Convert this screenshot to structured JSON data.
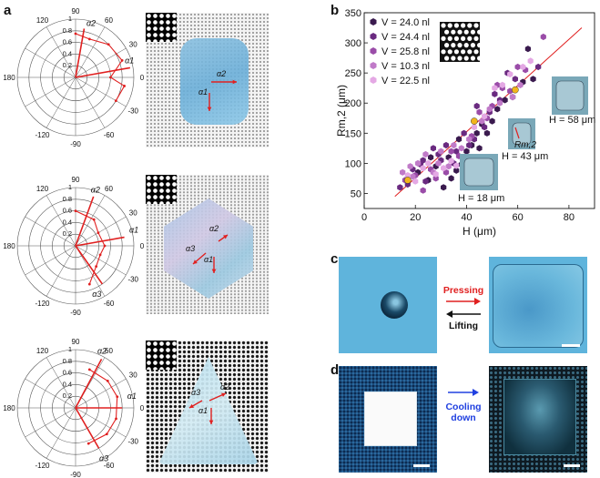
{
  "panels": {
    "a": "a",
    "b": "b",
    "c": "c",
    "d": "d"
  },
  "polar": {
    "radial_ticks": [
      "1",
      "0.8",
      "0.6",
      "0.4",
      "0.2"
    ],
    "angle_labels": {
      "top": "90",
      "top_right": "60",
      "right_upper": "30",
      "right": "0",
      "right_lower": "-30",
      "bottom_right": "-60",
      "bottom": "-90",
      "bottom_left": "-120",
      "left": "180",
      "top_left": "120"
    },
    "alpha_labels": [
      "α1",
      "α2",
      "α3"
    ],
    "series_color": "#e02020"
  },
  "chart_data": {
    "type": "scatter",
    "xlabel": "H (μm)",
    "ylabel": "Rm,2 (μm)",
    "xlim": [
      0,
      90
    ],
    "ylim": [
      25,
      350
    ],
    "xticks": [
      0,
      20,
      40,
      60,
      80
    ],
    "yticks": [
      50,
      100,
      150,
      200,
      250,
      300,
      350
    ],
    "legend_position": "top-left",
    "series": [
      {
        "name": "V = 24.0 nl",
        "color": "#3a1a4e",
        "points": [
          [
            21,
            85
          ],
          [
            25,
            72
          ],
          [
            28,
            95
          ],
          [
            31,
            60
          ],
          [
            33,
            110
          ],
          [
            36,
            88
          ],
          [
            38,
            98
          ],
          [
            40,
            120
          ],
          [
            42,
            130
          ],
          [
            44,
            150
          ],
          [
            46,
            165
          ],
          [
            48,
            150
          ],
          [
            52,
            190
          ],
          [
            55,
            205
          ],
          [
            58,
            210
          ],
          [
            62,
            235
          ],
          [
            64,
            290
          ],
          [
            66,
            240
          ],
          [
            26,
            110
          ],
          [
            34,
            75
          ],
          [
            37,
            140
          ],
          [
            45,
            125
          ],
          [
            50,
            170
          ]
        ]
      },
      {
        "name": "V = 24.4 nl",
        "color": "#6a2a80",
        "points": [
          [
            14,
            60
          ],
          [
            17,
            65
          ],
          [
            19,
            90
          ],
          [
            22,
            98
          ],
          [
            24,
            70
          ],
          [
            27,
            125
          ],
          [
            29,
            115
          ],
          [
            30,
            105
          ],
          [
            32,
            130
          ],
          [
            35,
            100
          ],
          [
            39,
            150
          ],
          [
            41,
            130
          ],
          [
            43,
            140
          ],
          [
            47,
            160
          ],
          [
            49,
            185
          ],
          [
            51,
            215
          ],
          [
            53,
            205
          ],
          [
            56,
            250
          ],
          [
            59,
            240
          ],
          [
            68,
            260
          ],
          [
            23,
            105
          ],
          [
            36,
            120
          ],
          [
            44,
            195
          ]
        ]
      },
      {
        "name": "V = 25.8 nl",
        "color": "#9a4ca8",
        "points": [
          [
            16,
            72
          ],
          [
            20,
            80
          ],
          [
            23,
            55
          ],
          [
            26,
            90
          ],
          [
            28,
            75
          ],
          [
            32,
            85
          ],
          [
            34,
            120
          ],
          [
            37,
            112
          ],
          [
            40,
            95
          ],
          [
            42,
            145
          ],
          [
            45,
            185
          ],
          [
            48,
            175
          ],
          [
            50,
            195
          ],
          [
            54,
            225
          ],
          [
            57,
            220
          ],
          [
            60,
            260
          ],
          [
            63,
            255
          ],
          [
            70,
            310
          ],
          [
            52,
            230
          ]
        ]
      },
      {
        "name": "V = 10.3 nl",
        "color": "#c07ac8",
        "points": [
          [
            15,
            85
          ],
          [
            18,
            95
          ],
          [
            21,
            100
          ],
          [
            24,
            115
          ],
          [
            27,
            85
          ],
          [
            30,
            120
          ],
          [
            33,
            95
          ],
          [
            35,
            130
          ],
          [
            38,
            125
          ],
          [
            41,
            140
          ],
          [
            46,
            170
          ],
          [
            49,
            190
          ],
          [
            53,
            200
          ],
          [
            58,
            210
          ],
          [
            61,
            230
          ],
          [
            19,
            78
          ],
          [
            29,
            100
          ]
        ]
      },
      {
        "name": "V = 22.5 nl",
        "color": "#e4a8e4",
        "points": [
          [
            17,
            80
          ],
          [
            20,
            70
          ],
          [
            23,
            92
          ],
          [
            25,
            100
          ],
          [
            31,
            92
          ],
          [
            34,
            104
          ],
          [
            39,
            108
          ],
          [
            43,
            160
          ],
          [
            47,
            178
          ],
          [
            51,
            225
          ],
          [
            54,
            230
          ],
          [
            57,
            248
          ],
          [
            62,
            260
          ],
          [
            65,
            270
          ],
          [
            28,
            82
          ],
          [
            36,
            96
          ]
        ]
      }
    ],
    "highlight_points": [
      [
        17,
        72
      ],
      [
        43,
        170
      ],
      [
        59,
        222
      ]
    ],
    "highlight_color": "#f2b51c",
    "fit_line": [
      [
        12,
        45
      ],
      [
        85,
        325
      ]
    ],
    "fit_color": "#e02020",
    "annotations": [
      "H = 18 μm",
      "H = 43 μm",
      "H = 58 μm",
      "Rm,2"
    ]
  },
  "panel_c": {
    "arrow_top": "Pressing",
    "arrow_bottom": "Lifting",
    "arrow_top_color": "#e02020",
    "arrow_bottom_color": "#111111"
  },
  "panel_d": {
    "arrow_label_line1": "Cooling",
    "arrow_label_line2": "down",
    "arrow_color": "#2040e0"
  },
  "photo_labels": {
    "alpha1": "α1",
    "alpha2": "α2",
    "alpha3": "α3"
  }
}
